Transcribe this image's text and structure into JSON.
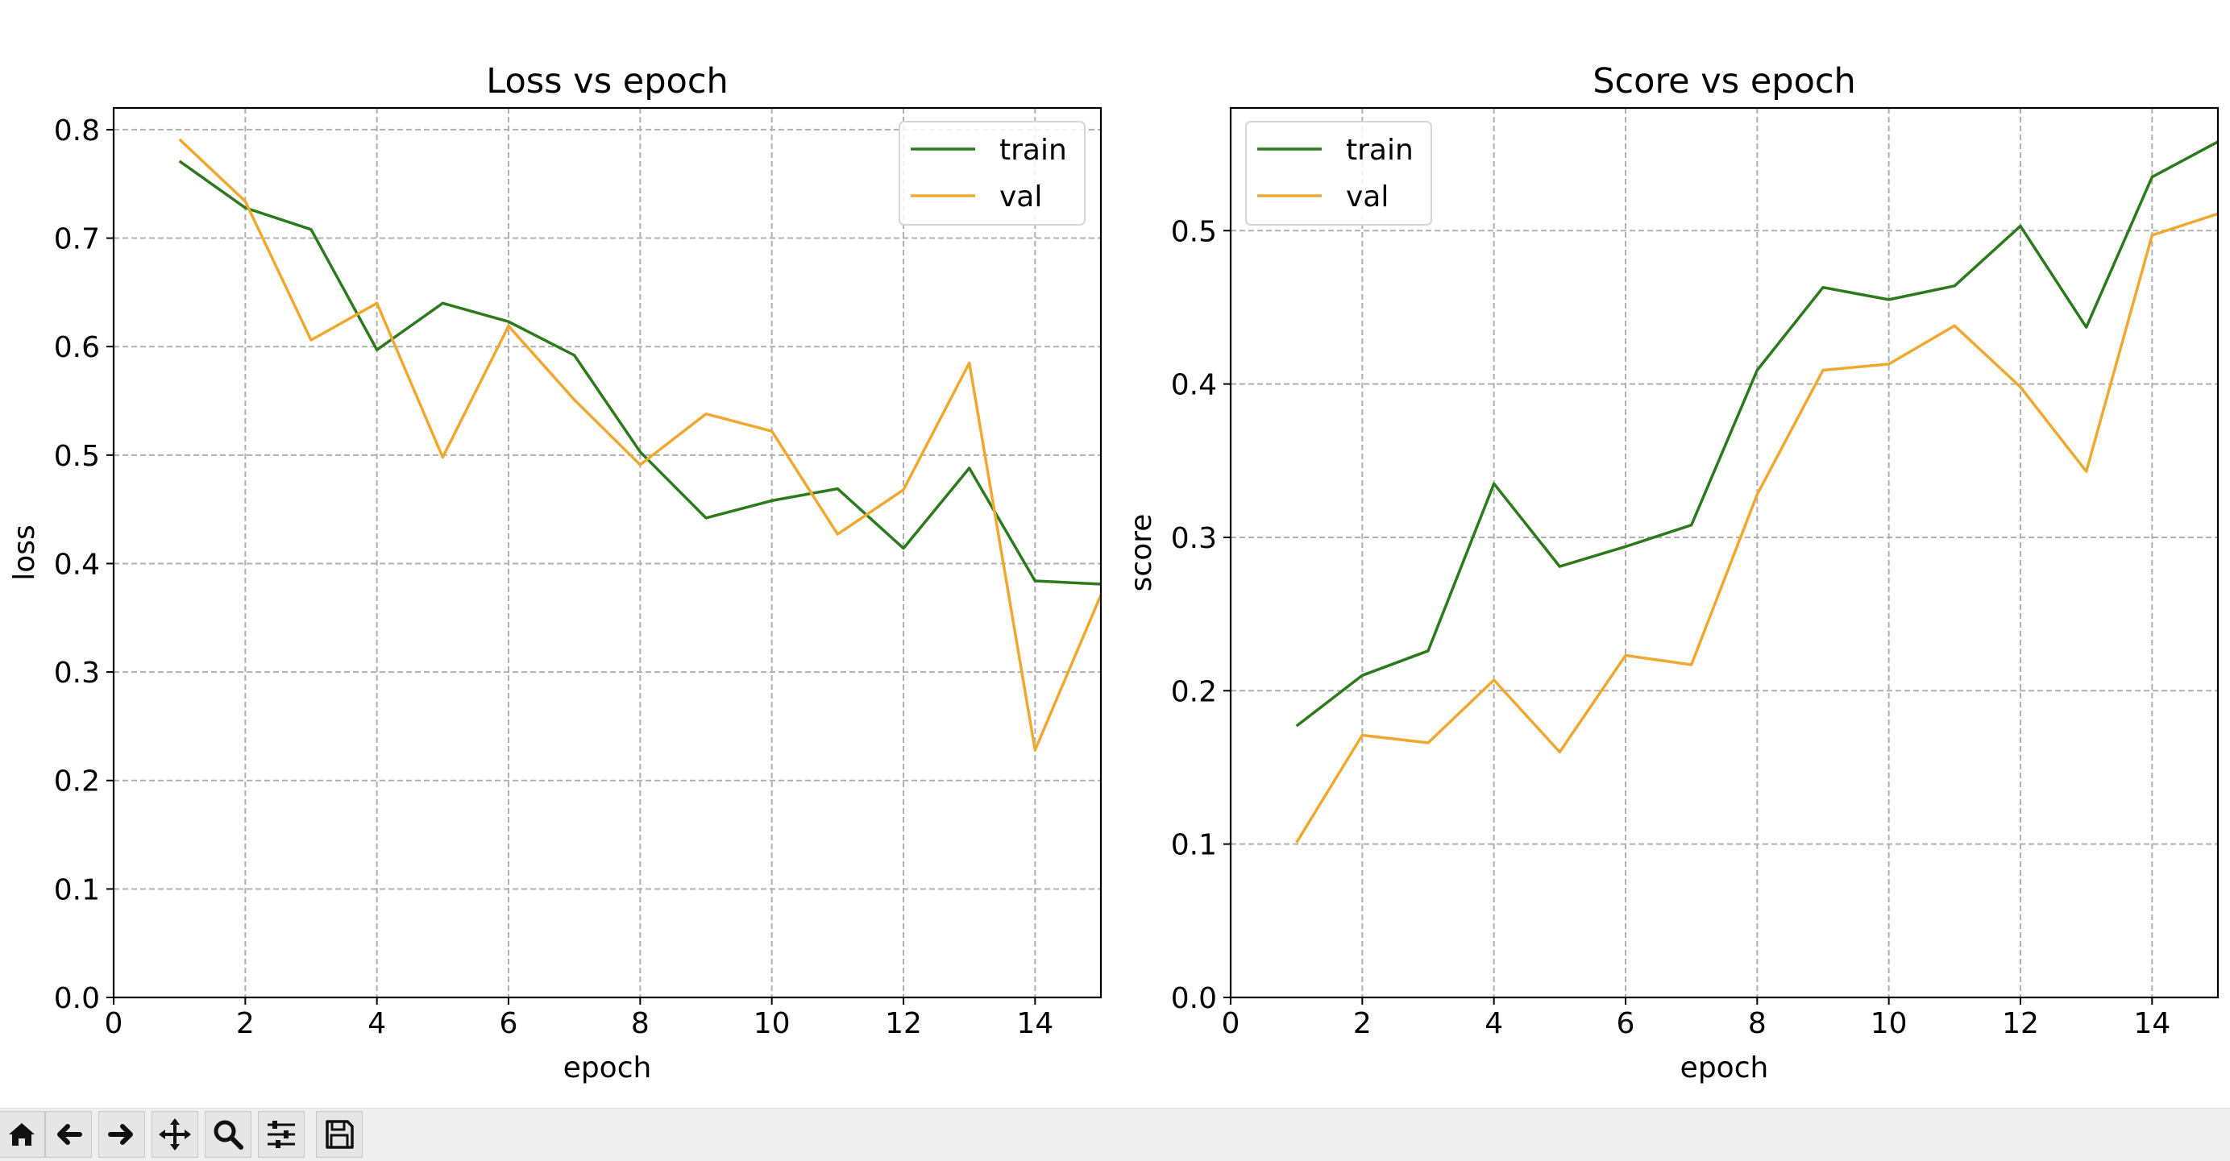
{
  "colors": {
    "train": "#2b7a1b",
    "val": "#f0a830",
    "grid": "#b0b0b0",
    "toolbar_bg": "#efefef"
  },
  "toolbar": {
    "buttons": [
      {
        "name": "home-icon"
      },
      {
        "name": "back-arrow-icon"
      },
      {
        "name": "forward-arrow-icon"
      },
      {
        "name": "pan-move-icon"
      },
      {
        "name": "zoom-magnifier-icon"
      },
      {
        "name": "configure-subplots-icon"
      },
      {
        "name": "save-floppy-icon"
      }
    ]
  },
  "chart_data": [
    {
      "type": "line",
      "title": "Loss vs epoch",
      "xlabel": "epoch",
      "ylabel": "loss",
      "xlim": [
        0,
        15
      ],
      "ylim": [
        0,
        0.82
      ],
      "xticks": [
        0,
        2,
        4,
        6,
        8,
        10,
        12,
        14
      ],
      "yticks": [
        0.0,
        0.1,
        0.2,
        0.3,
        0.4,
        0.5,
        0.6,
        0.7,
        0.8
      ],
      "grid": true,
      "legend": "upper right",
      "x": [
        1,
        2,
        3,
        4,
        5,
        6,
        7,
        8,
        9,
        10,
        11,
        12,
        13,
        14,
        15
      ],
      "series": [
        {
          "name": "train",
          "color": "#2b7a1b",
          "values": [
            0.771,
            0.728,
            0.708,
            0.597,
            0.64,
            0.623,
            0.592,
            0.503,
            0.442,
            0.458,
            0.469,
            0.414,
            0.488,
            0.384,
            0.381
          ]
        },
        {
          "name": "val",
          "color": "#f0a830",
          "values": [
            0.791,
            0.734,
            0.606,
            0.64,
            0.498,
            0.619,
            0.551,
            0.491,
            0.538,
            0.522,
            0.427,
            0.468,
            0.585,
            0.228,
            0.371
          ]
        }
      ]
    },
    {
      "type": "line",
      "title": "Score vs epoch",
      "xlabel": "epoch",
      "ylabel": "score",
      "xlim": [
        0,
        15
      ],
      "ylim": [
        0,
        0.58
      ],
      "xticks": [
        0,
        2,
        4,
        6,
        8,
        10,
        12,
        14
      ],
      "yticks": [
        0.0,
        0.1,
        0.2,
        0.3,
        0.4,
        0.5
      ],
      "grid": true,
      "legend": "upper left",
      "x": [
        1,
        2,
        3,
        4,
        5,
        6,
        7,
        8,
        9,
        10,
        11,
        12,
        13,
        14,
        15
      ],
      "series": [
        {
          "name": "train",
          "color": "#2b7a1b",
          "values": [
            0.177,
            0.21,
            0.226,
            0.335,
            0.281,
            0.294,
            0.308,
            0.409,
            0.463,
            0.455,
            0.464,
            0.503,
            0.437,
            0.535,
            0.558
          ]
        },
        {
          "name": "val",
          "color": "#f0a830",
          "values": [
            0.101,
            0.171,
            0.166,
            0.207,
            0.16,
            0.223,
            0.217,
            0.328,
            0.409,
            0.413,
            0.438,
            0.398,
            0.343,
            0.497,
            0.511
          ]
        }
      ]
    }
  ]
}
